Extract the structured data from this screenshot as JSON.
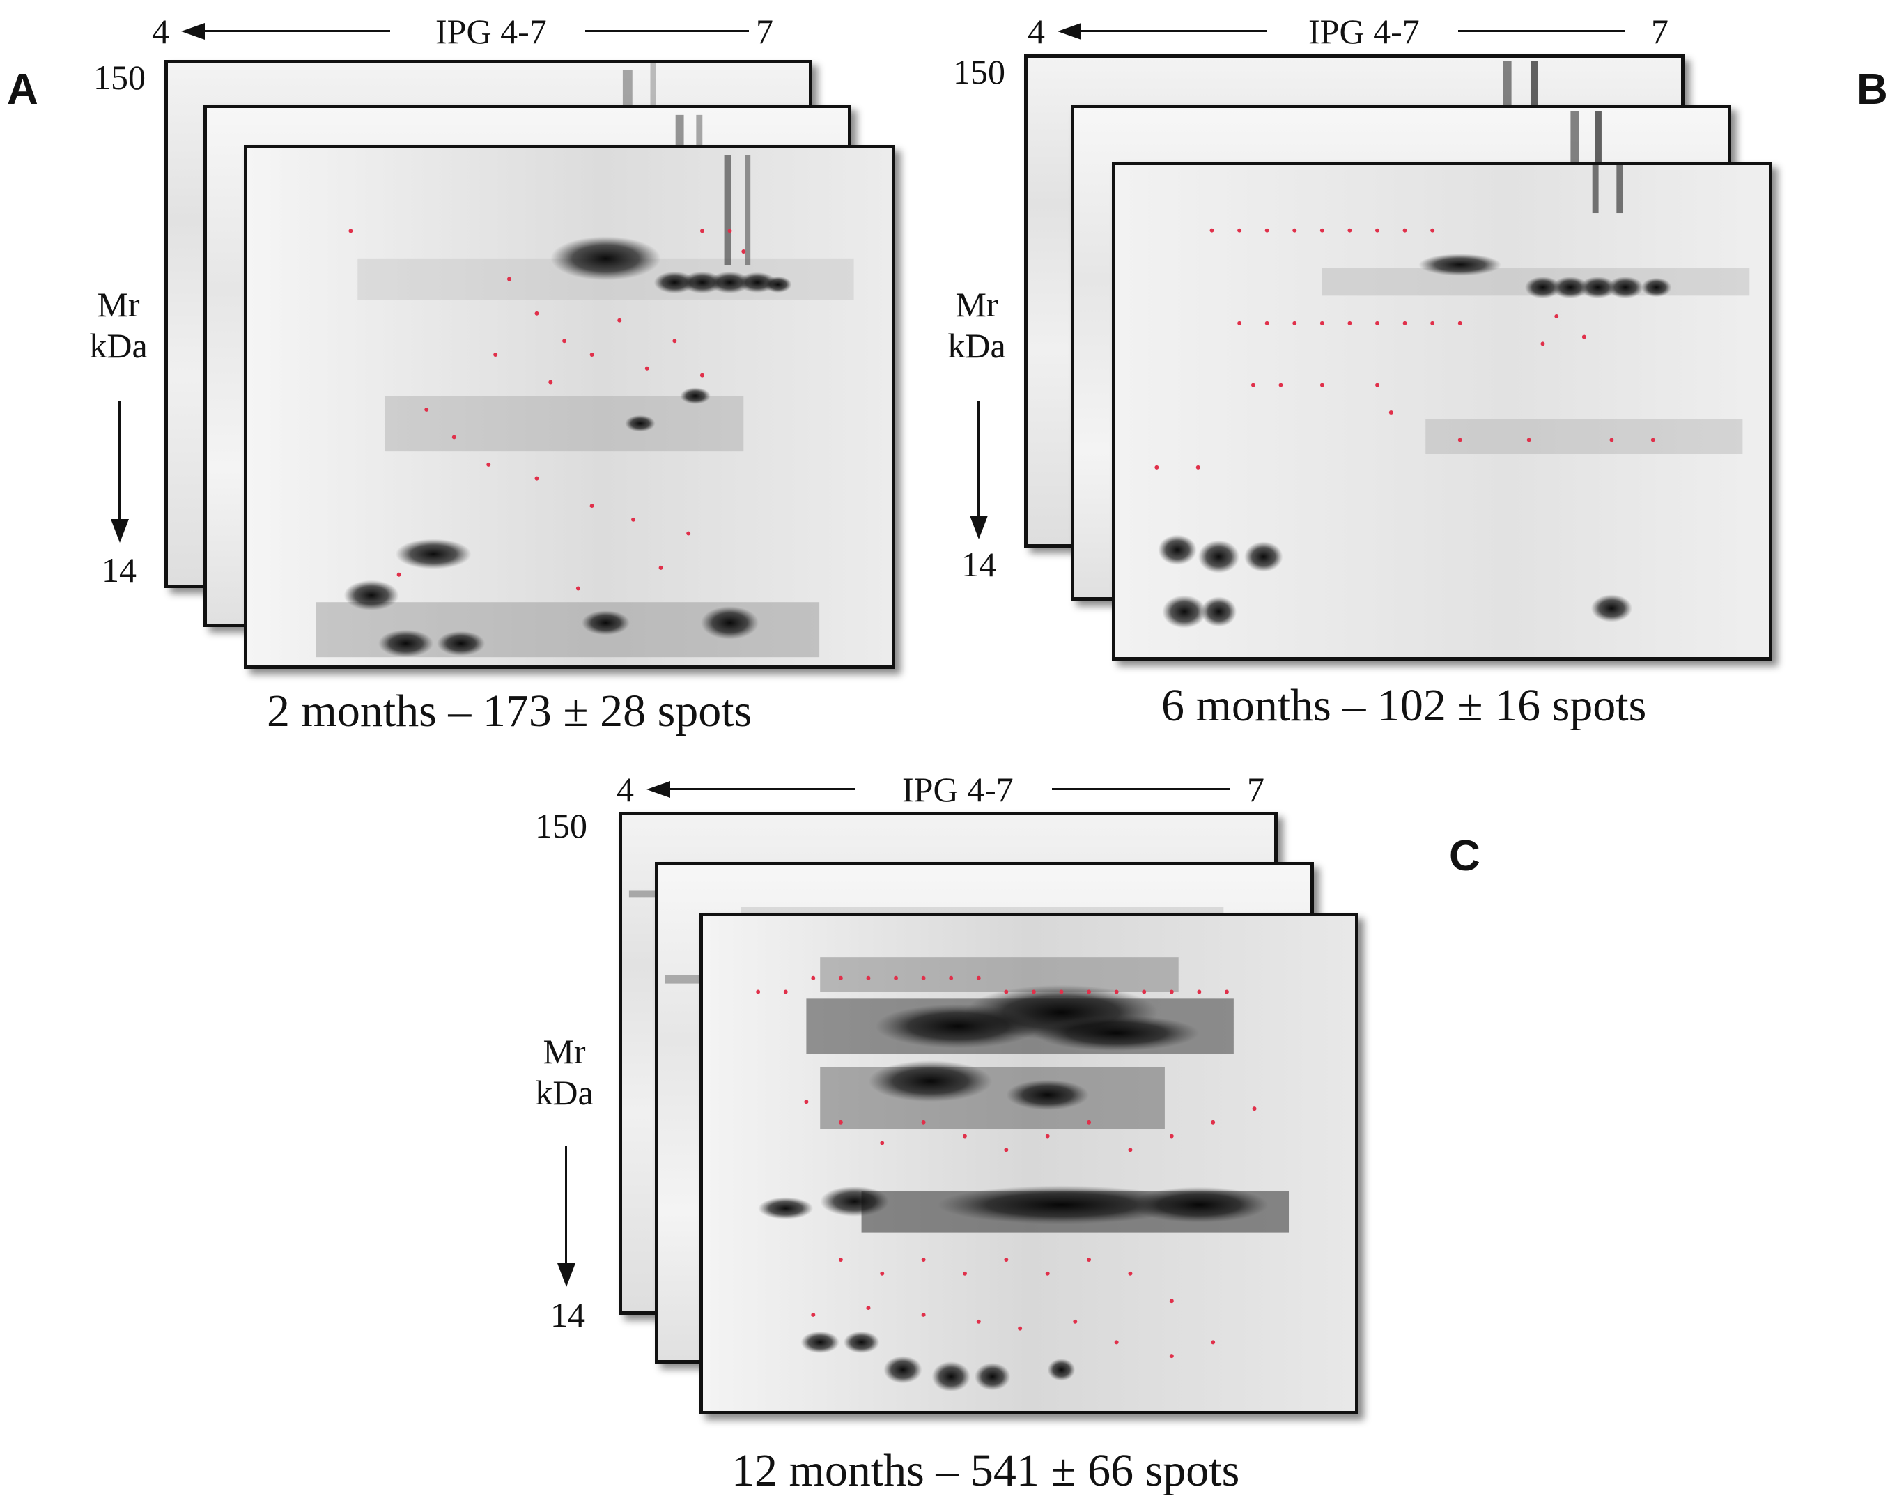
{
  "panels": {
    "A": {
      "letter": "A",
      "axis_left": "4",
      "axis_label": "IPG 4-7",
      "axis_right": "7",
      "mw_top": "150",
      "mw_label_line1": "Mr",
      "mw_label_line2": "kDa",
      "mw_bottom": "14",
      "caption": "2 months – 173 ± 28 spots"
    },
    "B": {
      "letter": "B",
      "axis_left": "4",
      "axis_label": "IPG 4-7",
      "axis_right": "7",
      "mw_top": "150",
      "mw_label_line1": "Mr",
      "mw_label_line2": "kDa",
      "mw_bottom": "14",
      "caption": "6 months – 102 ± 16 spots"
    },
    "C": {
      "letter": "C",
      "axis_left": "4",
      "axis_label": "IPG 4-7",
      "axis_right": "7",
      "mw_top": "150",
      "mw_label_line1": "Mr",
      "mw_label_line2": "kDa",
      "mw_bottom": "14",
      "caption": "12 months – 541 ± 66 spots"
    }
  },
  "colors": {
    "spot_marker": "#e0304a",
    "gel_border": "#111111"
  }
}
